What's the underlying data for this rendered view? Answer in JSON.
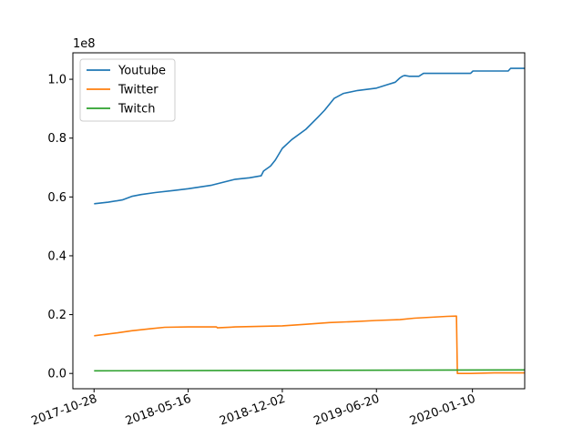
{
  "chart_data": {
    "type": "line",
    "title": "",
    "xlabel": "",
    "ylabel": "",
    "y_offset_label": "1e8",
    "x_tick_labels": [
      "2017-10-28",
      "2018-05-16",
      "2018-12-02",
      "2019-06-20",
      "2020-01-10"
    ],
    "y_tick_labels": [
      "0.0",
      "0.2",
      "0.4",
      "0.6",
      "0.8",
      "1.0"
    ],
    "y_ticks": [
      0.0,
      0.2,
      0.4,
      0.6,
      0.8,
      1.0
    ],
    "x_tick_days": [
      0,
      200,
      400,
      600,
      804
    ],
    "xlim": [
      -45,
      915
    ],
    "ylim": [
      -0.052,
      1.09
    ],
    "legend_position": "upper-left",
    "series": [
      {
        "name": "Youtube",
        "color": "#1f77b4",
        "x": [
          0,
          30,
          60,
          80,
          100,
          130,
          170,
          200,
          250,
          300,
          330,
          355,
          360,
          375,
          385,
          400,
          420,
          450,
          475,
          490,
          510,
          530,
          560,
          600,
          620,
          640,
          650,
          655,
          660,
          670,
          680,
          690,
          700,
          800,
          805,
          880,
          885,
          915
        ],
        "y": [
          0.577,
          0.582,
          0.59,
          0.602,
          0.608,
          0.615,
          0.622,
          0.628,
          0.64,
          0.66,
          0.665,
          0.672,
          0.688,
          0.705,
          0.725,
          0.765,
          0.795,
          0.83,
          0.87,
          0.895,
          0.935,
          0.952,
          0.962,
          0.97,
          0.98,
          0.99,
          1.005,
          1.01,
          1.013,
          1.01,
          1.01,
          1.01,
          1.02,
          1.02,
          1.028,
          1.028,
          1.037,
          1.037
        ]
      },
      {
        "name": "Twitter",
        "color": "#ff7f0e",
        "x": [
          0,
          50,
          80,
          120,
          150,
          200,
          260,
          262,
          300,
          400,
          450,
          500,
          550,
          600,
          650,
          680,
          750,
          770,
          772,
          800,
          850,
          915
        ],
        "y": [
          0.128,
          0.138,
          0.145,
          0.152,
          0.157,
          0.158,
          0.158,
          0.155,
          0.158,
          0.162,
          0.167,
          0.173,
          0.176,
          0.18,
          0.183,
          0.188,
          0.194,
          0.195,
          0.0,
          0.0,
          0.002,
          0.002
        ]
      },
      {
        "name": "Twitch",
        "color": "#2ca02c",
        "x": [
          0,
          915
        ],
        "y": [
          0.009,
          0.012
        ]
      }
    ]
  }
}
